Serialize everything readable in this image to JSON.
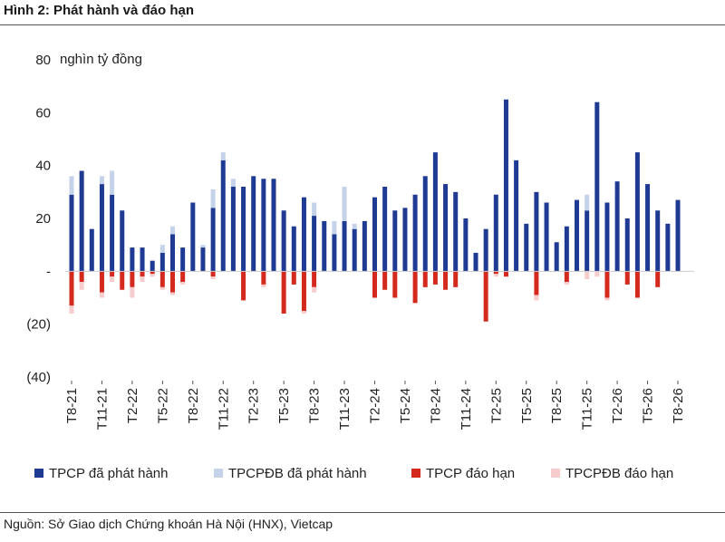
{
  "header": {
    "title": "Hình 2: Phát hành và đáo hạn"
  },
  "footer": {
    "source": "Nguồn: Sở Giao dịch Chứng khoán Hà Nội (HNX), Vietcap"
  },
  "chart_data": {
    "type": "bar",
    "stacked": true,
    "ylabel": "nghìn tỷ đồng",
    "ylim": [
      -40,
      80
    ],
    "yticks": [
      {
        "value": 80,
        "label": "80"
      },
      {
        "value": 60,
        "label": "60"
      },
      {
        "value": 40,
        "label": "40"
      },
      {
        "value": 20,
        "label": "20"
      },
      {
        "value": 0,
        "label": "-"
      },
      {
        "value": -20,
        "label": "(20)"
      },
      {
        "value": -40,
        "label": "(40)"
      }
    ],
    "x_tick_labels": [
      "T8-21",
      "T11-21",
      "T2-22",
      "T5-22",
      "T8-22",
      "T11-22",
      "T2-23",
      "T5-23",
      "T8-23",
      "T11-23",
      "T2-24",
      "T5-24",
      "T8-24",
      "T11-24",
      "T2-25",
      "T5-25",
      "T8-25",
      "T11-25",
      "T2-26",
      "T5-26",
      "T8-26"
    ],
    "categories": [
      "T8-21",
      "T9-21",
      "T10-21",
      "T11-21",
      "T12-21",
      "T1-22",
      "T2-22",
      "T3-22",
      "T4-22",
      "T5-22",
      "T6-22",
      "T7-22",
      "T8-22",
      "T9-22",
      "T10-22",
      "T11-22",
      "T12-22",
      "T1-23",
      "T2-23",
      "T3-23",
      "T4-23",
      "T5-23",
      "T6-23",
      "T7-23",
      "T8-23",
      "T9-23",
      "T10-23",
      "T11-23",
      "T12-23",
      "T1-24",
      "T2-24",
      "T3-24",
      "T4-24",
      "T5-24",
      "T6-24",
      "T7-24",
      "T8-24",
      "T9-24",
      "T10-24",
      "T11-24",
      "T12-24",
      "T1-25",
      "T2-25",
      "T3-25",
      "T4-25",
      "T5-25",
      "T6-25",
      "T7-25",
      "T8-25",
      "T9-25",
      "T10-25",
      "T11-25",
      "T12-25",
      "T1-26",
      "T2-26",
      "T3-26",
      "T4-26",
      "T5-26",
      "T6-26",
      "T7-26",
      "T8-26"
    ],
    "series": [
      {
        "name": "TPCP đã phát hành",
        "color": "#1f3a93",
        "values": [
          29,
          38,
          16,
          33,
          29,
          23,
          9,
          9,
          4,
          7,
          14,
          9,
          26,
          9,
          24,
          42,
          32,
          32,
          36,
          35,
          35,
          23,
          17,
          28,
          21,
          19,
          14,
          19,
          16,
          19,
          28,
          32,
          23,
          24,
          29,
          36,
          45,
          33,
          30,
          20,
          7,
          16,
          29,
          65,
          42,
          18,
          30,
          26,
          11,
          17,
          27,
          23,
          64,
          26,
          34,
          20,
          45,
          33,
          23,
          18,
          27
        ]
      },
      {
        "name": "TPCPĐB đã phát hành",
        "color": "#c5d3ea",
        "values": [
          7,
          0,
          0,
          3,
          9,
          0,
          0,
          0,
          0,
          3,
          3,
          0,
          0,
          1,
          7,
          3,
          3,
          0,
          0,
          0,
          0,
          0,
          0,
          0,
          5,
          0,
          5,
          13,
          2,
          0,
          0,
          0,
          0,
          0,
          0,
          0,
          0,
          0,
          0,
          0,
          0,
          0,
          0,
          0,
          0,
          0,
          0,
          0,
          0,
          0,
          0,
          6,
          0,
          0,
          0,
          0,
          0,
          0,
          0,
          0,
          0
        ]
      },
      {
        "name": "TPCP đáo hạn",
        "color": "#d42a1e",
        "values": [
          -13,
          -4,
          0,
          -8,
          -2,
          -7,
          -6,
          -2,
          -1,
          -6,
          -8,
          -4,
          0,
          0,
          -2,
          0,
          0,
          -11,
          0,
          -5,
          0,
          -16,
          -5,
          -15,
          -6,
          0,
          0,
          0,
          0,
          0,
          -10,
          -7,
          -10,
          0,
          -12,
          -6,
          -5,
          -7,
          -6,
          0,
          0,
          -19,
          -1,
          -2,
          0,
          0,
          -9,
          0,
          0,
          -4,
          0,
          0,
          0,
          -10,
          0,
          -5,
          -10,
          0,
          -6,
          0,
          0
        ]
      },
      {
        "name": "TPCPĐB đáo hạn",
        "color": "#f7cccc",
        "values": [
          -3,
          -3,
          0,
          -2,
          -2,
          0,
          -4,
          -2,
          -1,
          -1,
          -1,
          -1,
          0,
          0,
          -1,
          0,
          0,
          0,
          0,
          -1,
          0,
          0,
          0,
          -1,
          -2,
          0,
          0,
          0,
          0,
          0,
          0,
          0,
          0,
          0,
          0,
          0,
          0,
          0,
          0,
          0,
          0,
          0,
          -1,
          0,
          0,
          0,
          -2,
          0,
          0,
          -1,
          0,
          -3,
          -2,
          -1,
          0,
          0,
          0,
          0,
          0,
          0,
          0
        ]
      }
    ],
    "legend": {
      "position": "bottom"
    },
    "grid": false
  }
}
